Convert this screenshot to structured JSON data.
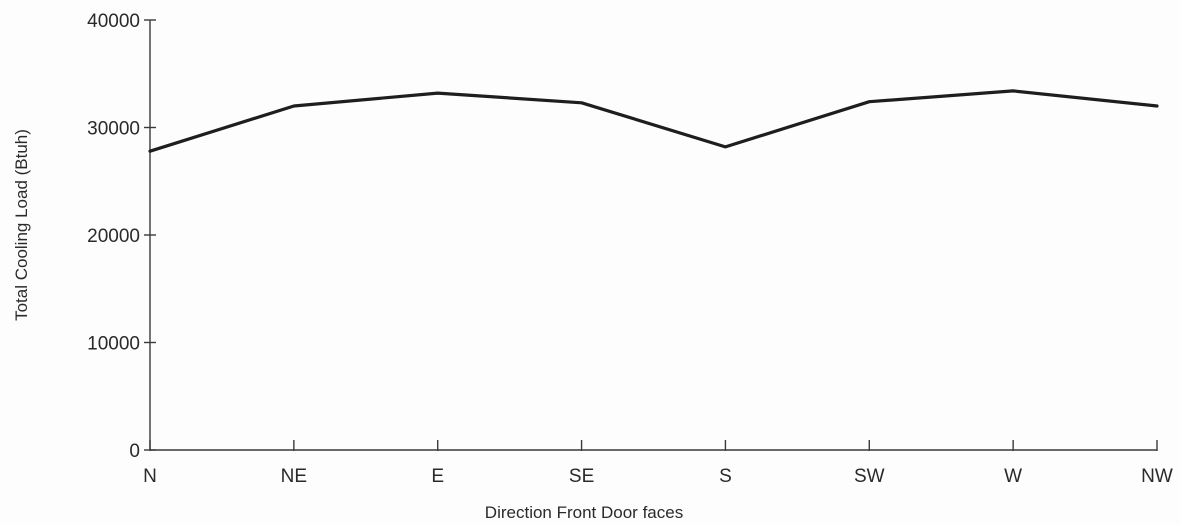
{
  "chart_data": {
    "type": "line",
    "title": "",
    "xlabel": "Direction Front Door faces",
    "ylabel": "Total Cooling Load (Btuh)",
    "categories": [
      "N",
      "NE",
      "E",
      "SE",
      "S",
      "SW",
      "W",
      "NW"
    ],
    "series": [
      {
        "values": [
          27800,
          32000,
          33200,
          32300,
          28200,
          32400,
          33400,
          32000
        ]
      }
    ],
    "ylim": [
      0,
      40000
    ],
    "yticks": [
      0,
      10000,
      20000,
      30000,
      40000
    ],
    "ytick_labels": [
      "0",
      "10000",
      "20000",
      "30000",
      "40000"
    ],
    "grid": false,
    "legend": "none",
    "colors": {
      "line": "#1e1e1e",
      "axis": "#3a3a3a"
    }
  }
}
